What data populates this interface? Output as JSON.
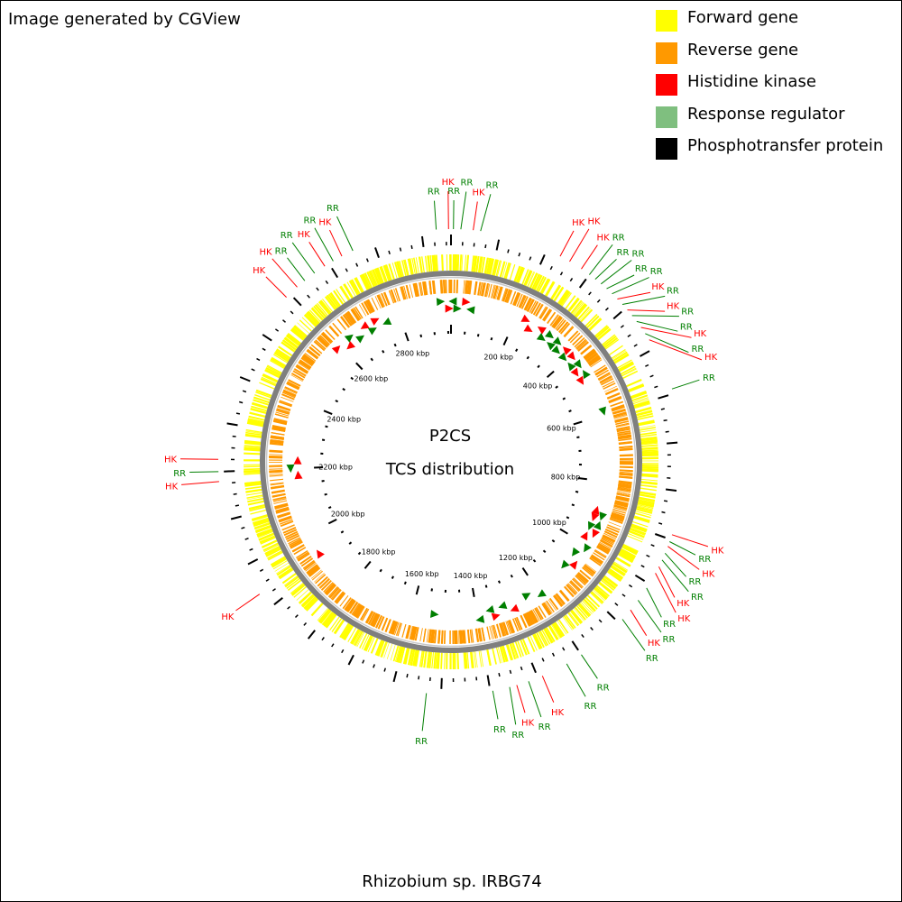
{
  "credit": "Image generated by CGView",
  "footer": "Rhizobium sp. IRBG74",
  "center": {
    "line1": "P2CS",
    "line2": "TCS distribution"
  },
  "legend": [
    {
      "label": "Forward gene",
      "color": "#ffff00"
    },
    {
      "label": "Reverse gene",
      "color": "#ff9900"
    },
    {
      "label": "Histidine kinase",
      "color": "#ff0000"
    },
    {
      "label": "Response regulator",
      "color": "#7fbf7f"
    },
    {
      "label": "Phosphotransfer protein",
      "color": "#000000"
    }
  ],
  "scale": {
    "genome_kbp": 2960,
    "major_ticks": [
      200,
      400,
      600,
      800,
      1000,
      1200,
      1400,
      1600,
      1800,
      2000,
      2200,
      2400,
      2600,
      2800
    ],
    "tick_suffix": " kbp"
  },
  "tcs_colors": {
    "HK": "#ff0000",
    "RR": "#007f00"
  },
  "genes": [
    {
      "type": "RR",
      "pos": 2930
    },
    {
      "type": "HK",
      "pos": 2955
    },
    {
      "type": "RR",
      "pos": 5
    },
    {
      "type": "RR",
      "pos": 20
    },
    {
      "type": "HK",
      "pos": 45
    },
    {
      "type": "RR",
      "pos": 60
    },
    {
      "type": "HK",
      "pos": 230
    },
    {
      "type": "HK",
      "pos": 252
    },
    {
      "type": "HK",
      "pos": 280
    },
    {
      "type": "RR",
      "pos": 300
    },
    {
      "type": "RR",
      "pos": 315
    },
    {
      "type": "RR",
      "pos": 330
    },
    {
      "type": "RR",
      "pos": 345
    },
    {
      "type": "RR",
      "pos": 360
    },
    {
      "type": "HK",
      "pos": 375
    },
    {
      "type": "RR",
      "pos": 390
    },
    {
      "type": "HK",
      "pos": 405
    },
    {
      "type": "RR",
      "pos": 420
    },
    {
      "type": "RR",
      "pos": 435
    },
    {
      "type": "HK",
      "pos": 450
    },
    {
      "type": "RR",
      "pos": 465
    },
    {
      "type": "HK",
      "pos": 480
    },
    {
      "type": "RR",
      "pos": 590
    },
    {
      "type": "HK",
      "pos": 890
    },
    {
      "type": "RR",
      "pos": 905
    },
    {
      "type": "HK",
      "pos": 915
    },
    {
      "type": "RR",
      "pos": 930
    },
    {
      "type": "RR",
      "pos": 945
    },
    {
      "type": "HK",
      "pos": 960
    },
    {
      "type": "HK",
      "pos": 975
    },
    {
      "type": "RR",
      "pos": 1010
    },
    {
      "type": "RR",
      "pos": 1040
    },
    {
      "type": "HK",
      "pos": 1065
    },
    {
      "type": "RR",
      "pos": 1090
    },
    {
      "type": "RR",
      "pos": 1200
    },
    {
      "type": "RR",
      "pos": 1235
    },
    {
      "type": "HK",
      "pos": 1290
    },
    {
      "type": "RR",
      "pos": 1320
    },
    {
      "type": "HK",
      "pos": 1345
    },
    {
      "type": "RR",
      "pos": 1360
    },
    {
      "type": "RR",
      "pos": 1395
    },
    {
      "type": "RR",
      "pos": 1530
    },
    {
      "type": "HK",
      "pos": 1935
    },
    {
      "type": "HK",
      "pos": 2180
    },
    {
      "type": "RR",
      "pos": 2200
    },
    {
      "type": "HK",
      "pos": 2225
    },
    {
      "type": "HK",
      "pos": 2590
    },
    {
      "type": "HK",
      "pos": 2620
    },
    {
      "type": "RR",
      "pos": 2640
    },
    {
      "type": "RR",
      "pos": 2665
    },
    {
      "type": "HK",
      "pos": 2690
    },
    {
      "type": "RR",
      "pos": 2710
    },
    {
      "type": "HK",
      "pos": 2730
    },
    {
      "type": "RR",
      "pos": 2755
    }
  ]
}
